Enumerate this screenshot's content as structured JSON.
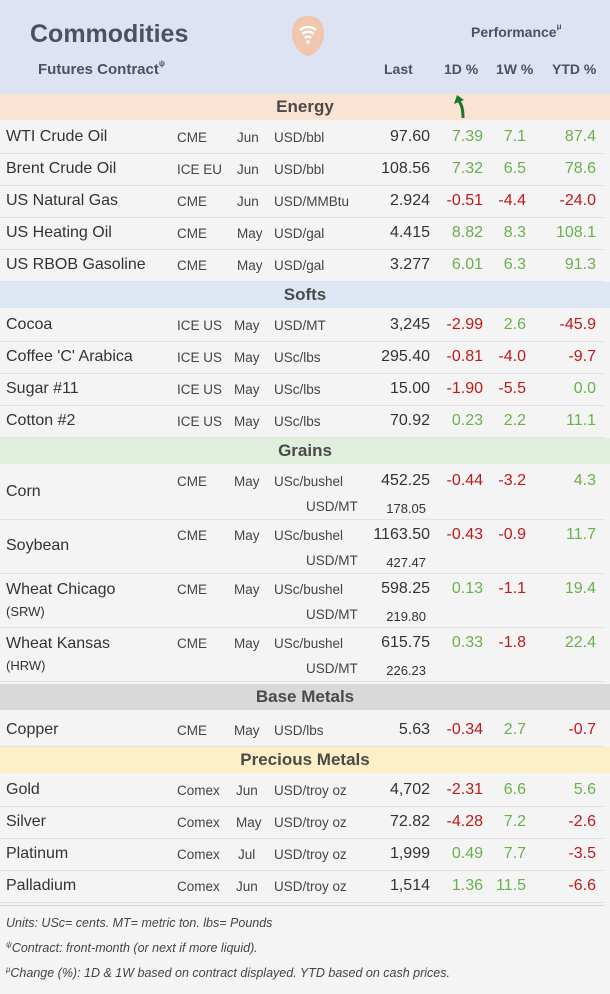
{
  "header": {
    "title": "Commodities",
    "subtitle": "Futures Contract",
    "subtitle_sup": "ψ",
    "performance": "Performance",
    "performance_sup": "μ",
    "col_last": "Last",
    "col_1d": "1D %",
    "col_1w": "1W %",
    "col_ytd": "YTD %",
    "logo_icon": "wifi-signal-logo",
    "colors": {
      "header_bg": "#dde3f2",
      "positive": "#6ab04c",
      "negative": "#c01818"
    }
  },
  "sections": {
    "energy": "Energy",
    "softs": "Softs",
    "grains": "Grains",
    "base": "Base Metals",
    "precious": "Precious Metals"
  },
  "energy": [
    {
      "name": "WTI Crude Oil",
      "exchange": "CME",
      "month": "Jun",
      "unit": "USD/bbl",
      "last": "97.60",
      "d1": "7.39",
      "w1": "7.1",
      "ytd": "87.4"
    },
    {
      "name": "Brent Crude Oil",
      "exchange": "ICE EU",
      "month": "Jun",
      "unit": "USD/bbl",
      "last": "108.56",
      "d1": "7.32",
      "w1": "6.5",
      "ytd": "78.6"
    },
    {
      "name": "US Natural Gas",
      "exchange": "CME",
      "month": "Jun",
      "unit": "USD/MMBtu",
      "last": "2.924",
      "d1": "-0.51",
      "w1": "-4.4",
      "ytd": "-24.0"
    },
    {
      "name": "US Heating Oil",
      "exchange": "CME",
      "month": "May",
      "unit": "USD/gal",
      "last": "4.415",
      "d1": "8.82",
      "w1": "8.3",
      "ytd": "108.1"
    },
    {
      "name": "US RBOB Gasoline",
      "exchange": "CME",
      "month": "May",
      "unit": "USD/gal",
      "last": "3.277",
      "d1": "6.01",
      "w1": "6.3",
      "ytd": "91.3"
    }
  ],
  "softs": [
    {
      "name": "Cocoa",
      "exchange": "ICE US",
      "month": "May",
      "unit": "USD/MT",
      "last": "3,245",
      "d1": "-2.99",
      "w1": "2.6",
      "ytd": "-45.9"
    },
    {
      "name": "Coffee 'C' Arabica",
      "exchange": "ICE US",
      "month": "May",
      "unit": "USc/lbs",
      "last": "295.40",
      "d1": "-0.81",
      "w1": "-4.0",
      "ytd": "-9.7"
    },
    {
      "name": "Sugar #11",
      "exchange": "ICE US",
      "month": "May",
      "unit": "USc/lbs",
      "last": "15.00",
      "d1": "-1.90",
      "w1": "-5.5",
      "ytd": "0.0"
    },
    {
      "name": "Cotton #2",
      "exchange": "ICE US",
      "month": "May",
      "unit": "USc/lbs",
      "last": "70.92",
      "d1": "0.23",
      "w1": "2.2",
      "ytd": "11.1"
    }
  ],
  "grains": [
    {
      "name": "Corn",
      "sub": "",
      "exchange": "CME",
      "month": "May",
      "unit": "USc/bushel",
      "last": "452.25",
      "unit2": "USD/MT",
      "last2": "178.05",
      "d1": "-0.44",
      "w1": "-3.2",
      "ytd": "4.3"
    },
    {
      "name": "Soybean",
      "sub": "",
      "exchange": "CME",
      "month": "May",
      "unit": "USc/bushel",
      "last": "1163.50",
      "unit2": "USD/MT",
      "last2": "427.47",
      "d1": "-0.43",
      "w1": "-0.9",
      "ytd": "11.7"
    },
    {
      "name": "Wheat Chicago",
      "sub": "(SRW)",
      "exchange": "CME",
      "month": "May",
      "unit": "USc/bushel",
      "last": "598.25",
      "unit2": "USD/MT",
      "last2": "219.80",
      "d1": "0.13",
      "w1": "-1.1",
      "ytd": "19.4"
    },
    {
      "name": "Wheat Kansas",
      "sub": "(HRW)",
      "exchange": "CME",
      "month": "May",
      "unit": "USc/bushel",
      "last": "615.75",
      "unit2": "USD/MT",
      "last2": "226.23",
      "d1": "0.33",
      "w1": "-1.8",
      "ytd": "22.4"
    }
  ],
  "base": [
    {
      "name": "Copper",
      "exchange": "CME",
      "month": "May",
      "unit": "USD/lbs",
      "last": "5.63",
      "d1": "-0.34",
      "w1": "2.7",
      "ytd": "-0.7"
    }
  ],
  "precious": [
    {
      "name": "Gold",
      "exchange": "Comex",
      "month": "Jun",
      "unit": "USD/troy oz",
      "last": "4,702",
      "d1": "-2.31",
      "w1": "6.6",
      "ytd": "5.6"
    },
    {
      "name": "Silver",
      "exchange": "Comex",
      "month": "May",
      "unit": "USD/troy oz",
      "last": "72.82",
      "d1": "-4.28",
      "w1": "7.2",
      "ytd": "-2.6"
    },
    {
      "name": "Platinum",
      "exchange": "Comex",
      "month": "Jul",
      "unit": "USD/troy oz",
      "last": "1,999",
      "d1": "0.49",
      "w1": "7.7",
      "ytd": "-3.5"
    },
    {
      "name": "Palladium",
      "exchange": "Comex",
      "month": "Jun",
      "unit": "USD/troy oz",
      "last": "1,514",
      "d1": "1.36",
      "w1": "11.5",
      "ytd": "-6.6"
    }
  ],
  "footer": {
    "units": "Units: USc= cents.  MT= metric ton.  lbs= Pounds",
    "contract_sup": "ψ",
    "contract": "Contract: front-month (or next if more liquid).",
    "change_sup": "μ",
    "change": "Change (%): 1D & 1W based on contract displayed. YTD based on cash prices."
  }
}
